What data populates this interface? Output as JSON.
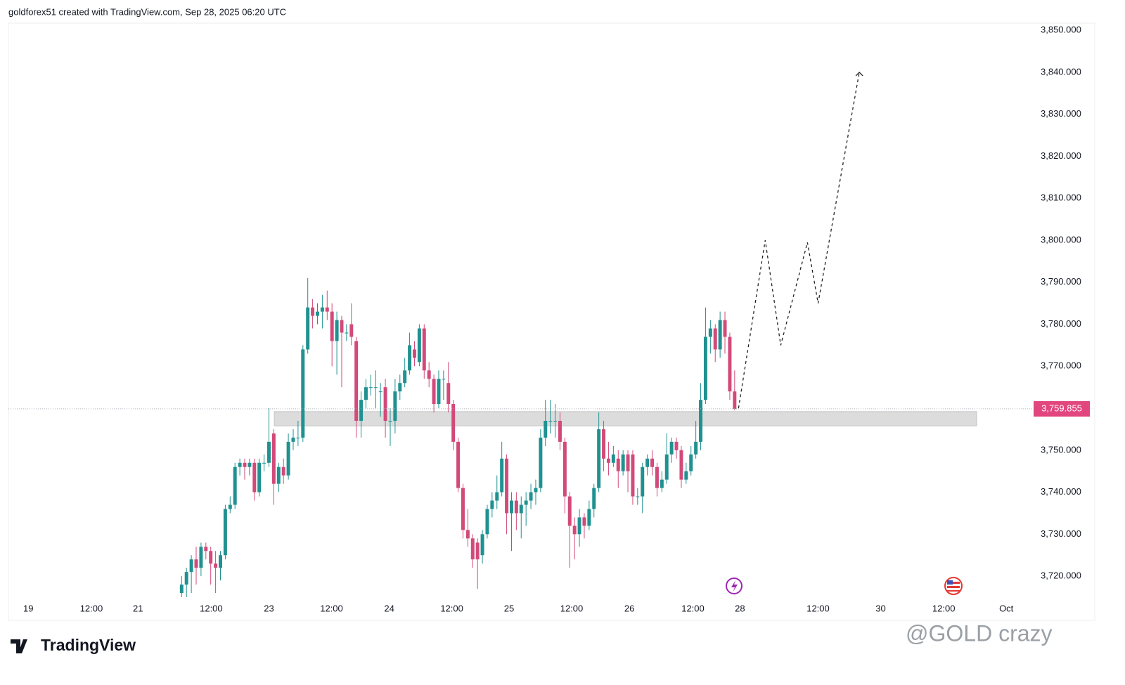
{
  "header": {
    "text": "goldforex51 created with TradingView.com, Sep 28, 2025 06:20 UTC"
  },
  "footer": {
    "logo": "TradingView",
    "watermark": "@GOLD crazy"
  },
  "chart_data": {
    "type": "candlestick",
    "up_color": "#1f9190",
    "down_color": "#d24a7a",
    "grid": false,
    "ylim": [
      3715,
      3851.7
    ],
    "yticks": [
      {
        "value": 3720,
        "label": "3,720.000"
      },
      {
        "value": 3730,
        "label": "3,730.000"
      },
      {
        "value": 3740,
        "label": "3,740.000"
      },
      {
        "value": 3750,
        "label": "3,750.000"
      },
      {
        "value": 3760,
        "label": "3,760.000"
      },
      {
        "value": 3770,
        "label": "3,770.000"
      },
      {
        "value": 3780,
        "label": "3,780.000"
      },
      {
        "value": 3790,
        "label": "3,790.000"
      },
      {
        "value": 3800,
        "label": "3,800.000"
      },
      {
        "value": 3810,
        "label": "3,810.000"
      },
      {
        "value": 3820,
        "label": "3,820.000"
      },
      {
        "value": 3830,
        "label": "3,830.000"
      },
      {
        "value": 3840,
        "label": "3,840.000"
      },
      {
        "value": 3850,
        "label": "3,850.000"
      }
    ],
    "xlim": [
      -35.7,
      174.9
    ],
    "xticks": [
      {
        "value": -31.6,
        "label": "19"
      },
      {
        "value": -18.6,
        "label": "12:00"
      },
      {
        "value": -9.0,
        "label": "21"
      },
      {
        "value": 6.1,
        "label": "12:00"
      },
      {
        "value": 18.0,
        "label": "23"
      },
      {
        "value": 30.9,
        "label": "12:00"
      },
      {
        "value": 42.8,
        "label": "24"
      },
      {
        "value": 55.7,
        "label": "12:00"
      },
      {
        "value": 67.5,
        "label": "25"
      },
      {
        "value": 80.4,
        "label": "12:00"
      },
      {
        "value": 92.3,
        "label": "26"
      },
      {
        "value": 105.4,
        "label": "12:00"
      },
      {
        "value": 115.1,
        "label": "28"
      },
      {
        "value": 131.2,
        "label": "12:00"
      },
      {
        "value": 144.1,
        "label": "30"
      },
      {
        "value": 157.1,
        "label": "12:00"
      },
      {
        "value": 170.0,
        "label": "Oct"
      }
    ],
    "x": [
      0,
      1,
      2,
      3,
      4,
      5,
      6,
      7,
      8,
      9,
      10,
      11,
      12,
      13,
      14,
      15,
      16,
      17,
      18,
      19,
      20,
      21,
      22,
      23,
      24,
      25,
      26,
      27,
      28,
      29,
      30,
      31,
      32,
      33,
      34,
      35,
      36,
      37,
      38,
      39,
      40,
      41,
      42,
      43,
      44,
      45,
      46,
      47,
      48,
      49,
      50,
      51,
      52,
      53,
      54,
      55,
      56,
      57,
      58,
      59,
      60,
      61,
      62,
      63,
      64,
      65,
      66,
      67,
      68,
      69,
      70,
      71,
      72,
      73,
      74,
      75,
      76,
      77,
      78,
      79,
      80,
      81,
      82,
      83,
      84,
      85,
      86,
      87,
      88,
      89,
      90,
      91,
      92,
      93,
      94,
      95,
      96,
      97,
      98,
      99,
      100,
      101,
      102,
      103,
      104,
      105,
      106,
      107,
      108,
      109,
      110,
      111,
      112,
      113,
      114
    ],
    "open": [
      3716,
      3718,
      3721,
      3724,
      3722,
      3727,
      3726,
      3723,
      3722,
      3725,
      3736,
      3737,
      3746,
      3747,
      3746,
      3747,
      3740,
      3747,
      3747,
      3754,
      3742,
      3746,
      3744,
      3752,
      3753,
      3753,
      3774,
      3784,
      3782,
      3783,
      3784,
      3783,
      3776,
      3781,
      3778,
      3780,
      3776,
      3757,
      3762,
      3765,
      3765,
      3764,
      3765,
      3757,
      3757,
      3764,
      3766,
      3769,
      3774,
      3771,
      3779,
      3769,
      3767,
      3761,
      3767,
      3766,
      3761,
      3752,
      3741,
      3731,
      3729,
      3728,
      3725,
      3730,
      3736,
      3738,
      3740,
      3748,
      3735,
      3738,
      3735,
      3737,
      3738,
      3740,
      3741,
      3753,
      3757,
      3757,
      3757,
      3752,
      3739,
      3732,
      3730,
      3734,
      3732,
      3736,
      3741,
      3755,
      3748,
      3747,
      3748,
      3745,
      3749,
      3749,
      3739,
      3739,
      3746,
      3748,
      3746,
      3741,
      3743,
      3749,
      3752,
      3750,
      3743,
      3745,
      3749,
      3752,
      3762,
      3777,
      3779,
      3774,
      3781,
      3777,
      3764
    ],
    "high": [
      3720,
      3722,
      3725,
      3727,
      3728,
      3728,
      3727,
      3726,
      3726,
      3737,
      3739,
      3747,
      3748,
      3748,
      3748,
      3748,
      3748,
      3749,
      3760,
      3755,
      3747,
      3748,
      3754,
      3755,
      3757,
      3775,
      3791,
      3786,
      3785,
      3787,
      3788,
      3785,
      3783,
      3782,
      3780,
      3785,
      3777,
      3764,
      3767,
      3768,
      3769,
      3766,
      3767,
      3760,
      3767,
      3768,
      3772,
      3778,
      3776,
      3780,
      3780,
      3771,
      3768,
      3769,
      3769,
      3771,
      3762,
      3753,
      3742,
      3736,
      3730,
      3729,
      3731,
      3737,
      3740,
      3744,
      3752,
      3749,
      3740,
      3740,
      3739,
      3740,
      3742,
      3743,
      3755,
      3762,
      3762,
      3761,
      3759,
      3753,
      3740,
      3734,
      3736,
      3735,
      3738,
      3742,
      3759,
      3757,
      3752,
      3751,
      3750,
      3750,
      3750,
      3750,
      3741,
      3747,
      3749,
      3750,
      3747,
      3745,
      3754,
      3753,
      3753,
      3751,
      3747,
      3751,
      3757,
      3766,
      3784,
      3781,
      3780,
      3783,
      3783,
      3778,
      3769
    ],
    "low": [
      3715,
      3715,
      3716,
      3718,
      3720,
      3724,
      3718,
      3716,
      3719,
      3724,
      3735,
      3736,
      3744,
      3743,
      3744,
      3738,
      3739,
      3745,
      3746,
      3737,
      3740,
      3742,
      3743,
      3750,
      3751,
      3752,
      3773,
      3779,
      3780,
      3779,
      3781,
      3770,
      3768,
      3765,
      3776,
      3775,
      3753,
      3753,
      3760,
      3763,
      3760,
      3758,
      3753,
      3751,
      3754,
      3762,
      3765,
      3768,
      3770,
      3770,
      3767,
      3765,
      3759,
      3760,
      3762,
      3759,
      3750,
      3740,
      3729,
      3727,
      3722,
      3717,
      3723,
      3729,
      3734,
      3736,
      3739,
      3730,
      3726,
      3731,
      3729,
      3732,
      3736,
      3737,
      3740,
      3751,
      3754,
      3753,
      3750,
      3735,
      3722,
      3724,
      3727,
      3729,
      3731,
      3734,
      3740,
      3745,
      3744,
      3746,
      3741,
      3744,
      3740,
      3737,
      3737,
      3735,
      3744,
      3744,
      3739,
      3740,
      3742,
      3747,
      3748,
      3741,
      3742,
      3744,
      3748,
      3750,
      3761,
      3773,
      3771,
      3772,
      3773,
      3762,
      3759.5
    ],
    "close": [
      3718,
      3721,
      3724,
      3722,
      3727,
      3726,
      3723,
      3722,
      3725,
      3736,
      3737,
      3746,
      3747,
      3746,
      3747,
      3740,
      3747,
      3747,
      3752,
      3742,
      3746,
      3744,
      3752,
      3753,
      3753,
      3774,
      3784,
      3782,
      3783,
      3784,
      3783,
      3776,
      3781,
      3778,
      3778,
      3777,
      3757,
      3762,
      3765,
      3765,
      3765,
      3764,
      3757,
      3757,
      3764,
      3766,
      3769,
      3775,
      3772,
      3779,
      3769,
      3767,
      3761,
      3767,
      3767,
      3761,
      3752,
      3741,
      3731,
      3729,
      3724,
      3724,
      3730,
      3736,
      3738,
      3740,
      3748,
      3735,
      3738,
      3735,
      3737,
      3738,
      3740,
      3741,
      3753,
      3757,
      3757,
      3757,
      3752,
      3739,
      3732,
      3730,
      3734,
      3732,
      3736,
      3741,
      3755,
      3748,
      3747,
      3749,
      3745,
      3749,
      3745,
      3739,
      3739,
      3746,
      3748,
      3746,
      3741,
      3743,
      3749,
      3752,
      3750,
      3743,
      3745,
      3749,
      3752,
      3762,
      3777,
      3779,
      3774,
      3781,
      3777,
      3764,
      3759.855
    ],
    "zone": {
      "x": [
        19.1,
        163.9
      ],
      "y": [
        3755.8,
        3759.2
      ]
    },
    "last_price": {
      "value": 3759.855,
      "label": "3,759.855"
    },
    "projection": {
      "x": [
        114.8,
        120.3,
        123.5,
        129.0,
        131.2,
        139.7
      ],
      "values": [
        3760,
        3800,
        3775,
        3799.5,
        3785,
        3840
      ]
    }
  }
}
